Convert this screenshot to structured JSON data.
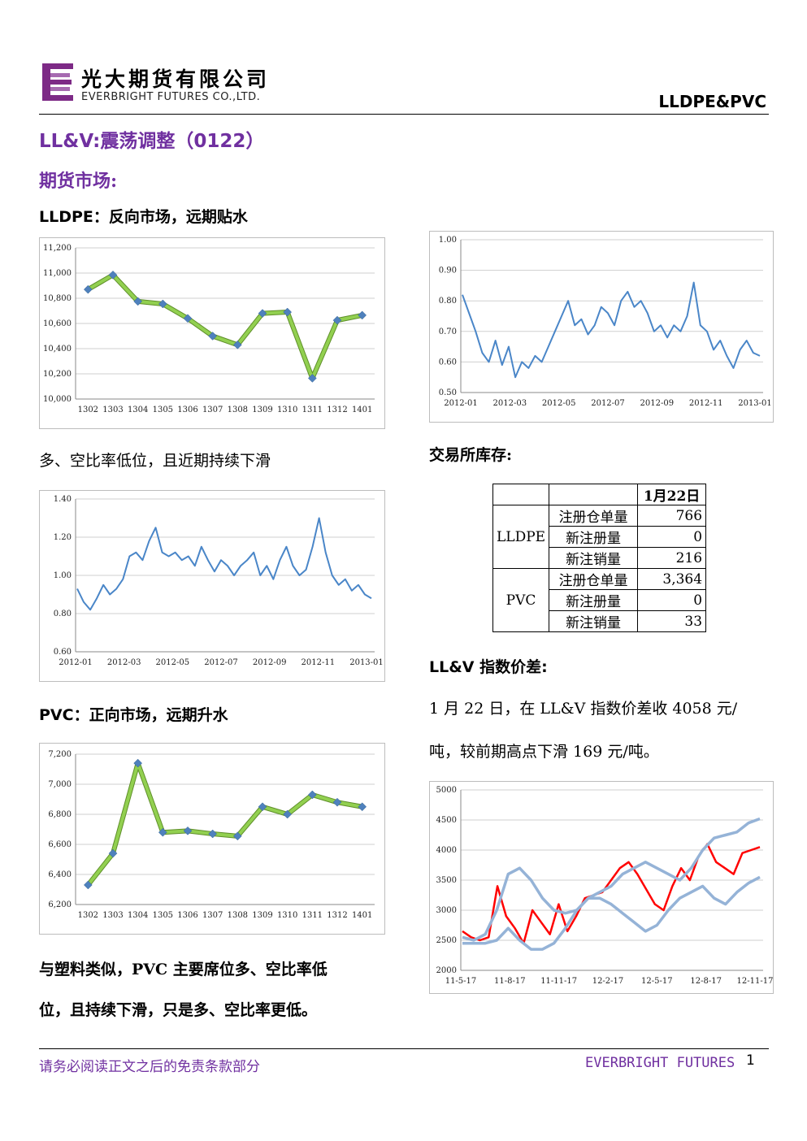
{
  "header": {
    "company_cn": "光大期货有限公司",
    "company_en": "EVERBRIGHT FUTURES CO.,LTD.",
    "report_topic": "LLDPE&PVC"
  },
  "title": "LL&V:震荡调整（0122）",
  "section_futures": "期货市场:",
  "lldpe_heading": {
    "prefix": "LLDPE",
    "text": "：反向市场，远期贴水"
  },
  "ratio_heading": "多、空比率低位，且近期持续下滑",
  "pvc_heading": {
    "prefix": "PVC",
    "text": "：正向市场，远期升水"
  },
  "pvc_para": [
    "与塑料类似，PVC 主要席位多、空比率低",
    "位，且持续下滑，只是多、空比率更低。"
  ],
  "inventory_heading": "交易所库存:",
  "inventory_table": {
    "date": "1月22日",
    "groups": [
      {
        "name": "LLDPE",
        "rows": [
          {
            "label": "注册仓单量",
            "value": "766"
          },
          {
            "label": "新注册量",
            "value": "0"
          },
          {
            "label": "新注销量",
            "value": "216"
          }
        ]
      },
      {
        "name": "PVC",
        "rows": [
          {
            "label": "注册仓单量",
            "value": "3,364"
          },
          {
            "label": "新注册量",
            "value": "0"
          },
          {
            "label": "新注销量",
            "value": "33"
          }
        ]
      }
    ]
  },
  "spread_heading": "LL&V 指数价差:",
  "spread_para": [
    "1 月 22 日，在 LL&V 指数价差收 4058 元/",
    "吨，较前期高点下滑 169 元/吨。"
  ],
  "footer": {
    "disclaimer": "请务必阅读正文之后的免责条款部分",
    "brand": "EVERBRIGHT FUTURES",
    "page": "1"
  },
  "chart_data": [
    {
      "id": "lldpe_curve",
      "type": "line",
      "categories": [
        "1302",
        "1303",
        "1304",
        "1305",
        "1306",
        "1307",
        "1308",
        "1309",
        "1310",
        "1311",
        "1312",
        "1401"
      ],
      "values": [
        10870,
        10985,
        10775,
        10755,
        10640,
        10500,
        10430,
        10680,
        10690,
        10165,
        10625,
        10665
      ],
      "yticks": [
        "10,000",
        "10,200",
        "10,400",
        "10,600",
        "10,800",
        "11,000",
        "11,200"
      ],
      "ylim": [
        10000,
        11200
      ],
      "color": "#92d050",
      "grid": true
    },
    {
      "id": "lldpe_ratio",
      "type": "line",
      "xticks": [
        "2012-01",
        "2012-03",
        "2012-05",
        "2012-07",
        "2012-09",
        "2012-11",
        "2013-01"
      ],
      "yticks": [
        "0.60",
        "0.80",
        "1.00",
        "1.20",
        "1.40"
      ],
      "ylim": [
        0.6,
        1.4
      ],
      "values": [
        0.93,
        0.86,
        0.82,
        0.88,
        0.95,
        0.9,
        0.93,
        0.98,
        1.1,
        1.12,
        1.08,
        1.18,
        1.25,
        1.12,
        1.1,
        1.12,
        1.08,
        1.1,
        1.05,
        1.15,
        1.08,
        1.02,
        1.08,
        1.05,
        1.0,
        1.05,
        1.08,
        1.12,
        1.0,
        1.05,
        0.98,
        1.08,
        1.15,
        1.05,
        1.0,
        1.03,
        1.15,
        1.3,
        1.12,
        1.0,
        0.95,
        0.98,
        0.92,
        0.95,
        0.9,
        0.88
      ],
      "color": "#4a86c8",
      "grid": true
    },
    {
      "id": "pvc_curve",
      "type": "line",
      "categories": [
        "1302",
        "1303",
        "1304",
        "1305",
        "1306",
        "1307",
        "1308",
        "1309",
        "1310",
        "1311",
        "1312",
        "1401"
      ],
      "values": [
        6330,
        6540,
        7140,
        6680,
        6690,
        6670,
        6655,
        6850,
        6800,
        6930,
        6880,
        6850
      ],
      "yticks": [
        "6,200",
        "6,400",
        "6,600",
        "6,800",
        "7,000",
        "7,200"
      ],
      "ylim": [
        6200,
        7200
      ],
      "color": "#92d050",
      "grid": true
    },
    {
      "id": "pvc_ratio",
      "type": "line",
      "xticks": [
        "2012-01",
        "2012-03",
        "2012-05",
        "2012-07",
        "2012-09",
        "2012-11",
        "2013-01"
      ],
      "yticks": [
        "0.50",
        "0.60",
        "0.70",
        "0.80",
        "0.90",
        "1.00"
      ],
      "ylim": [
        0.5,
        1.0
      ],
      "values": [
        0.82,
        0.76,
        0.7,
        0.63,
        0.6,
        0.67,
        0.59,
        0.65,
        0.55,
        0.6,
        0.58,
        0.62,
        0.6,
        0.65,
        0.7,
        0.75,
        0.8,
        0.72,
        0.74,
        0.69,
        0.72,
        0.78,
        0.76,
        0.72,
        0.8,
        0.83,
        0.78,
        0.8,
        0.76,
        0.7,
        0.72,
        0.68,
        0.72,
        0.7,
        0.75,
        0.86,
        0.72,
        0.7,
        0.64,
        0.67,
        0.62,
        0.58,
        0.64,
        0.67,
        0.63,
        0.62
      ],
      "color": "#4a86c8",
      "grid": true
    },
    {
      "id": "spread",
      "type": "line",
      "xticks": [
        "11-5-17",
        "11-8-17",
        "11-11-17",
        "12-2-17",
        "12-5-17",
        "12-8-17",
        "12-11-17"
      ],
      "yticks": [
        "2000",
        "2500",
        "3000",
        "3500",
        "4000",
        "4500",
        "5000"
      ],
      "ylim": [
        2000,
        5000
      ],
      "series": [
        {
          "values": [
            2650,
            2550,
            2500,
            2550,
            3400,
            2900,
            2700,
            2450,
            3000,
            2800,
            2600,
            3100,
            2650,
            2900,
            3200,
            3250,
            3300,
            3500,
            3700,
            3800,
            3600,
            3350,
            3100,
            3000,
            3400,
            3700,
            3500,
            3900,
            4100,
            3800,
            3700,
            3600,
            3950,
            4000,
            4050
          ],
          "color": "#ff0000"
        },
        {
          "values": [
            2550,
            2500,
            2600,
            3000,
            3600,
            3700,
            3500,
            3200,
            3000,
            2950,
            3000,
            3200,
            3300,
            3400,
            3600,
            3700,
            3800,
            3700,
            3600,
            3500,
            3700,
            4000,
            4200,
            4250,
            4300,
            4450,
            4520
          ],
          "color": "#95b3d7"
        },
        {
          "values": [
            2450,
            2450,
            2450,
            2500,
            2700,
            2500,
            2350,
            2350,
            2450,
            2700,
            3000,
            3200,
            3200,
            3100,
            2950,
            2800,
            2650,
            2750,
            3000,
            3200,
            3300,
            3400,
            3200,
            3100,
            3300,
            3450,
            3550
          ],
          "color": "#95b3d7"
        }
      ]
    }
  ]
}
